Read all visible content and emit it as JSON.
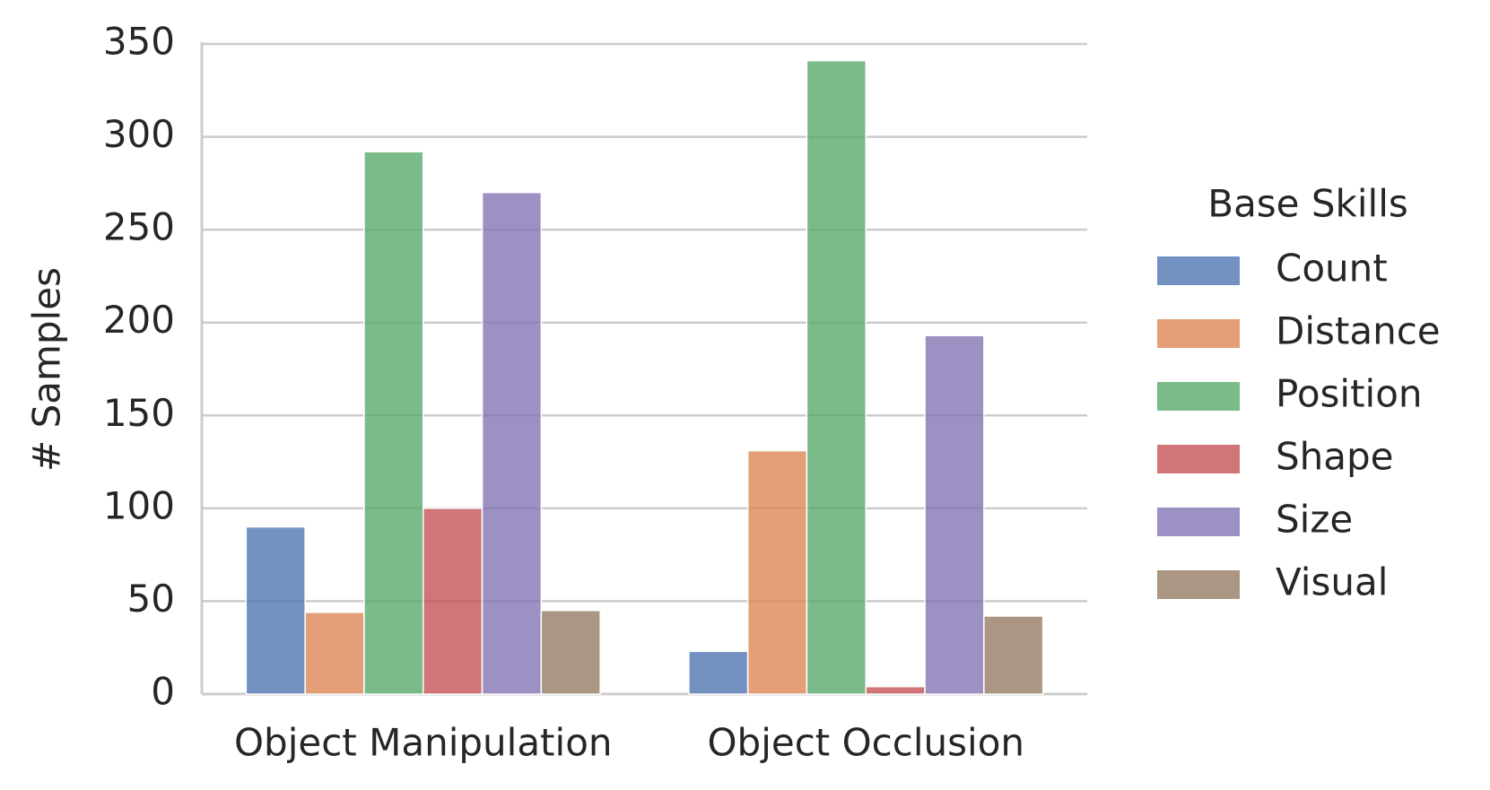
{
  "chart_data": {
    "type": "bar",
    "y_label": "# Samples",
    "categories": [
      "Object Manipulation",
      "Object Occlusion"
    ],
    "legend_title": "Base Skills",
    "legend": "right",
    "grid": true,
    "ylim": [
      0,
      350
    ],
    "yticks": [
      0,
      50,
      100,
      150,
      200,
      250,
      300,
      350
    ],
    "series": [
      {
        "name": "Count",
        "color": "#4c72b0",
        "values": [
          90,
          23
        ]
      },
      {
        "name": "Distance",
        "color": "#dd8452",
        "values": [
          44,
          131
        ]
      },
      {
        "name": "Position",
        "color": "#55a868",
        "values": [
          292,
          341
        ]
      },
      {
        "name": "Shape",
        "color": "#c44e52",
        "values": [
          100,
          4
        ]
      },
      {
        "name": "Size",
        "color": "#8172b3",
        "values": [
          270,
          193
        ]
      },
      {
        "name": "Visual",
        "color": "#937860",
        "values": [
          45,
          42
        ]
      }
    ]
  }
}
